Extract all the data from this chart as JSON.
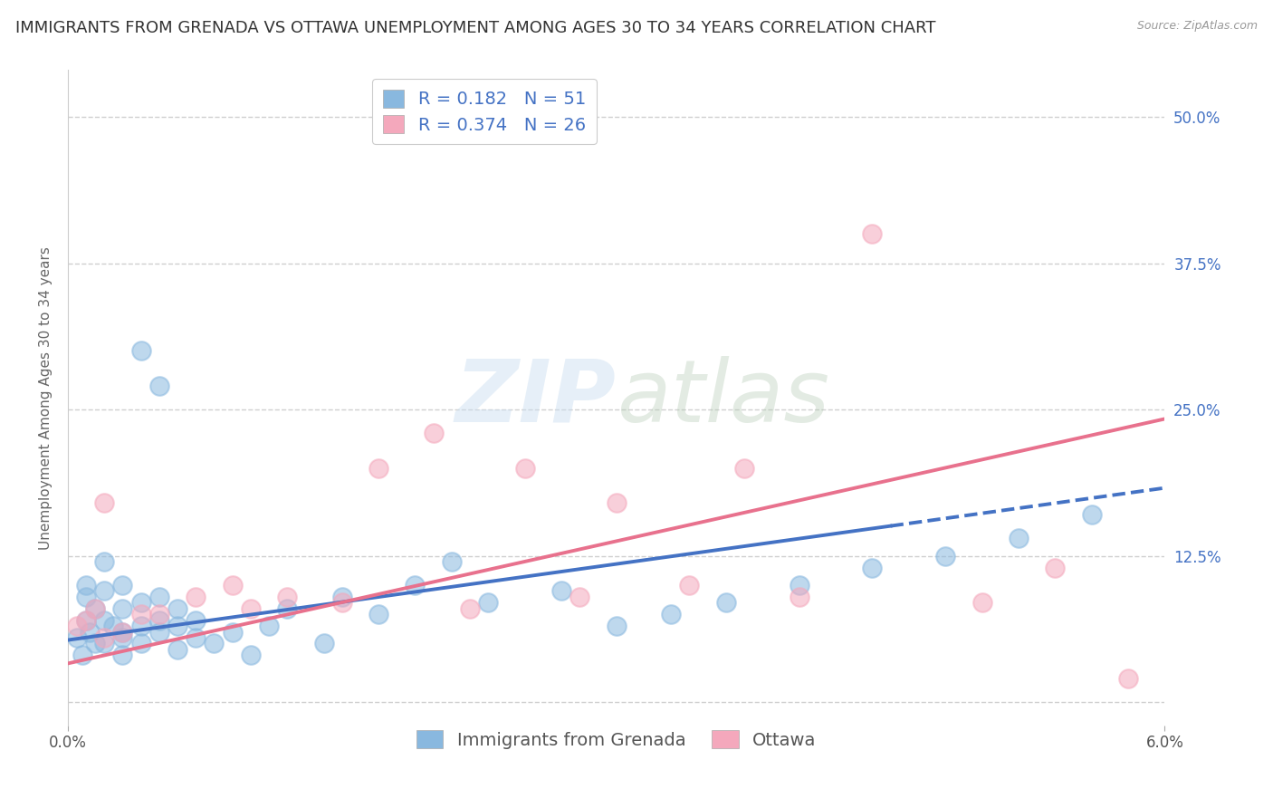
{
  "title": "IMMIGRANTS FROM GRENADA VS OTTAWA UNEMPLOYMENT AMONG AGES 30 TO 34 YEARS CORRELATION CHART",
  "source": "Source: ZipAtlas.com",
  "ylabel": "Unemployment Among Ages 30 to 34 years",
  "xlim": [
    0.0,
    0.06
  ],
  "ylim": [
    -0.02,
    0.54
  ],
  "ytick_positions": [
    0.0,
    0.125,
    0.25,
    0.375,
    0.5
  ],
  "ytick_labels_right": [
    "",
    "12.5%",
    "25.0%",
    "37.5%",
    "50.0%"
  ],
  "color_blue": "#89b8df",
  "color_pink": "#f4a8bc",
  "color_blue_line": "#4472c4",
  "color_pink_line": "#e8718d",
  "color_blue_text": "#4472c4",
  "background_color": "#ffffff",
  "grid_color": "#d0d0d0",
  "title_fontsize": 13,
  "axis_label_fontsize": 11,
  "tick_fontsize": 12,
  "legend_fontsize": 14,
  "watermark": "ZIPatlas",
  "series1_x": [
    0.0005,
    0.0008,
    0.001,
    0.001,
    0.001,
    0.0012,
    0.0015,
    0.0015,
    0.002,
    0.002,
    0.002,
    0.002,
    0.0025,
    0.003,
    0.003,
    0.003,
    0.003,
    0.003,
    0.004,
    0.004,
    0.004,
    0.004,
    0.005,
    0.005,
    0.005,
    0.005,
    0.006,
    0.006,
    0.006,
    0.007,
    0.007,
    0.008,
    0.009,
    0.01,
    0.011,
    0.012,
    0.014,
    0.015,
    0.017,
    0.019,
    0.021,
    0.023,
    0.027,
    0.03,
    0.033,
    0.036,
    0.04,
    0.044,
    0.048,
    0.052,
    0.056
  ],
  "series1_y": [
    0.055,
    0.04,
    0.07,
    0.09,
    0.1,
    0.06,
    0.08,
    0.05,
    0.07,
    0.095,
    0.12,
    0.05,
    0.065,
    0.06,
    0.08,
    0.1,
    0.04,
    0.055,
    0.065,
    0.085,
    0.05,
    0.3,
    0.07,
    0.06,
    0.09,
    0.27,
    0.08,
    0.065,
    0.045,
    0.055,
    0.07,
    0.05,
    0.06,
    0.04,
    0.065,
    0.08,
    0.05,
    0.09,
    0.075,
    0.1,
    0.12,
    0.085,
    0.095,
    0.065,
    0.075,
    0.085,
    0.1,
    0.115,
    0.125,
    0.14,
    0.16
  ],
  "series2_x": [
    0.0005,
    0.001,
    0.0015,
    0.002,
    0.002,
    0.003,
    0.004,
    0.005,
    0.007,
    0.009,
    0.01,
    0.012,
    0.015,
    0.017,
    0.02,
    0.022,
    0.025,
    0.028,
    0.03,
    0.034,
    0.037,
    0.04,
    0.044,
    0.05,
    0.054,
    0.058
  ],
  "series2_y": [
    0.065,
    0.07,
    0.08,
    0.055,
    0.17,
    0.06,
    0.075,
    0.075,
    0.09,
    0.1,
    0.08,
    0.09,
    0.085,
    0.2,
    0.23,
    0.08,
    0.2,
    0.09,
    0.17,
    0.1,
    0.2,
    0.09,
    0.4,
    0.085,
    0.115,
    0.02
  ],
  "trend1_x0": 0.0,
  "trend1_y0": 0.053,
  "trend1_x1": 0.06,
  "trend1_y1": 0.183,
  "trend1_split": 0.045,
  "trend2_x0": 0.0,
  "trend2_y0": 0.033,
  "trend2_x1": 0.06,
  "trend2_y1": 0.242
}
